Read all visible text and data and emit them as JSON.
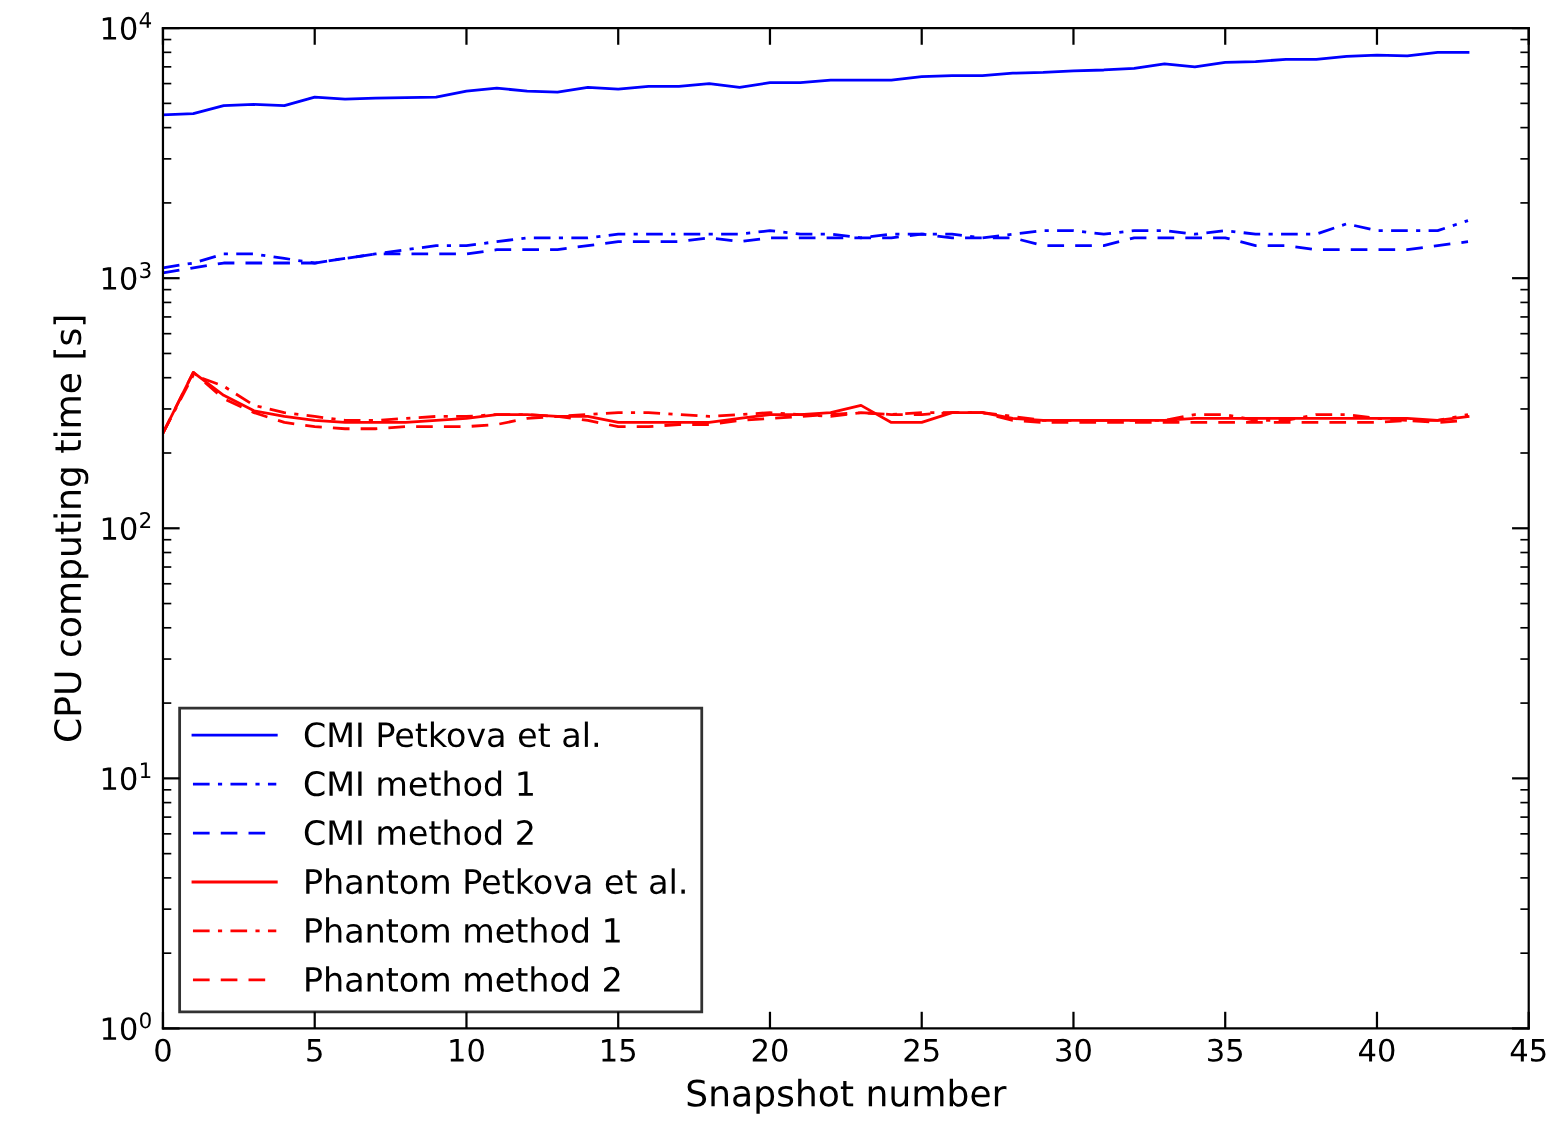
{
  "chart_data": {
    "type": "line",
    "xlabel": "Snapshot number",
    "ylabel": "CPU computing time [s]",
    "log": "y",
    "grid": false,
    "legend": "bottom left",
    "marker": "none",
    "x": [
      0,
      1,
      2,
      3,
      4,
      5,
      6,
      7,
      8,
      9,
      10,
      11,
      12,
      13,
      14,
      15,
      16,
      17,
      18,
      19,
      20,
      21,
      22,
      23,
      24,
      25,
      26,
      27,
      28,
      29,
      30,
      31,
      32,
      33,
      34,
      35,
      36,
      37,
      38,
      39,
      40,
      41,
      42,
      43
    ],
    "xlim": [
      0,
      45
    ],
    "xticks": [
      0,
      5,
      10,
      15,
      20,
      25,
      30,
      35,
      40,
      45
    ],
    "ylim": [
      1,
      10000
    ],
    "yticks": [
      {
        "value": 1,
        "label": "10$^{0}$"
      },
      {
        "value": 10,
        "label": "10$^{1}$"
      },
      {
        "value": 100,
        "label": "10$^{2}$"
      },
      {
        "value": 1000,
        "label": "10$^{3}$"
      },
      {
        "value": 10000,
        "label": "10$^{4}$"
      }
    ],
    "series": [
      {
        "name": "CMI Petkova et al.",
        "color": "#0000ff",
        "line_style": "solid",
        "values": [
          4500,
          4550,
          4900,
          4950,
          4900,
          5300,
          5200,
          5250,
          5270,
          5300,
          5600,
          5750,
          5600,
          5550,
          5800,
          5700,
          5850,
          5850,
          6000,
          5800,
          6050,
          6050,
          6200,
          6200,
          6200,
          6400,
          6450,
          6450,
          6600,
          6650,
          6750,
          6800,
          6900,
          7200,
          7000,
          7300,
          7350,
          7500,
          7500,
          7700,
          7800,
          7750,
          8000,
          8000
        ]
      },
      {
        "name": "CMI method 1",
        "color": "#0000ff",
        "line_style": "dashdot",
        "values": [
          1100,
          1150,
          1250,
          1250,
          1200,
          1150,
          1200,
          1250,
          1300,
          1350,
          1350,
          1400,
          1450,
          1450,
          1450,
          1500,
          1500,
          1500,
          1500,
          1500,
          1550,
          1500,
          1500,
          1450,
          1500,
          1500,
          1500,
          1450,
          1500,
          1550,
          1550,
          1500,
          1550,
          1550,
          1500,
          1550,
          1500,
          1500,
          1500,
          1650,
          1550,
          1550,
          1550,
          1700
        ]
      },
      {
        "name": "CMI method 2",
        "color": "#0000ff",
        "line_style": "dashed",
        "values": [
          1050,
          1100,
          1150,
          1150,
          1150,
          1150,
          1200,
          1250,
          1250,
          1250,
          1250,
          1300,
          1300,
          1300,
          1350,
          1400,
          1400,
          1400,
          1450,
          1400,
          1450,
          1450,
          1450,
          1450,
          1450,
          1500,
          1450,
          1450,
          1450,
          1350,
          1350,
          1350,
          1450,
          1450,
          1450,
          1450,
          1350,
          1350,
          1300,
          1300,
          1300,
          1300,
          1350,
          1400
        ]
      },
      {
        "name": "Phantom Petkova et al.",
        "color": "#ff0000",
        "line_style": "solid",
        "values": [
          240,
          420,
          340,
          295,
          280,
          270,
          265,
          265,
          265,
          270,
          275,
          285,
          285,
          280,
          280,
          265,
          265,
          265,
          265,
          275,
          285,
          285,
          290,
          310,
          265,
          265,
          290,
          290,
          275,
          270,
          270,
          270,
          270,
          270,
          275,
          275,
          275,
          275,
          275,
          275,
          275,
          275,
          270,
          280
        ]
      },
      {
        "name": "Phantom method 1",
        "color": "#ff0000",
        "line_style": "dashdot",
        "values": [
          240,
          410,
          370,
          310,
          290,
          280,
          270,
          270,
          275,
          280,
          280,
          285,
          285,
          280,
          285,
          290,
          290,
          285,
          280,
          285,
          290,
          285,
          280,
          290,
          285,
          290,
          290,
          290,
          280,
          270,
          270,
          270,
          270,
          270,
          285,
          285,
          270,
          270,
          285,
          285,
          275,
          270,
          270,
          285
        ]
      },
      {
        "name": "Phantom method 2",
        "color": "#ff0000",
        "line_style": "dashed",
        "values": [
          240,
          420,
          330,
          290,
          265,
          255,
          250,
          250,
          255,
          255,
          255,
          260,
          275,
          280,
          270,
          255,
          255,
          260,
          260,
          270,
          275,
          280,
          285,
          290,
          285,
          285,
          290,
          290,
          270,
          265,
          265,
          265,
          265,
          265,
          265,
          265,
          265,
          265,
          265,
          265,
          265,
          270,
          265,
          270
        ]
      }
    ]
  }
}
